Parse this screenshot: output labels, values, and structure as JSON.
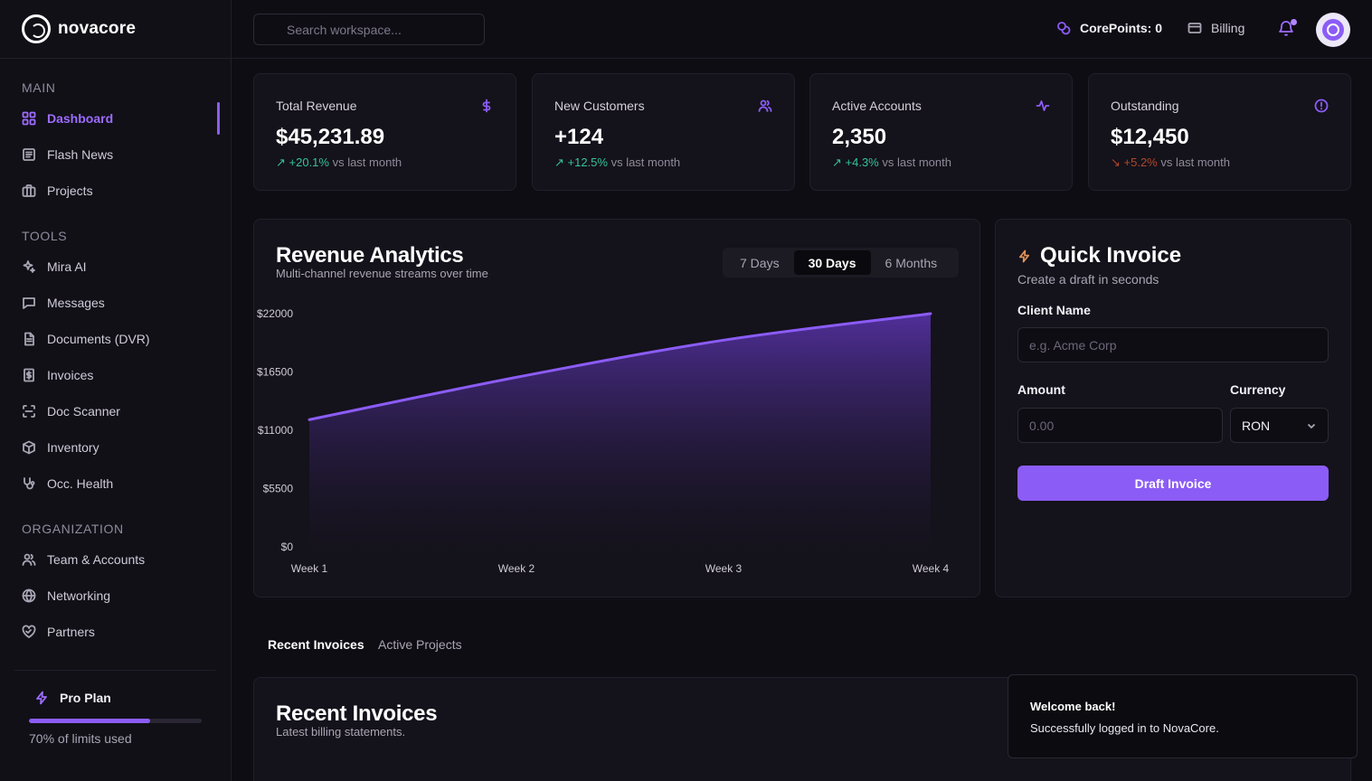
{
  "brand": {
    "name": "novacore"
  },
  "sidebar": {
    "sections": [
      {
        "label": "MAIN"
      },
      {
        "label": "TOOLS"
      },
      {
        "label": "ORGANIZATION"
      }
    ],
    "items": [
      {
        "label": "Dashboard",
        "icon": "grid-icon"
      },
      {
        "label": "Flash News",
        "icon": "newspaper-icon"
      },
      {
        "label": "Projects",
        "icon": "briefcase-icon"
      },
      {
        "label": "Mira AI",
        "icon": "sparkles-icon"
      },
      {
        "label": "Messages",
        "icon": "message-icon"
      },
      {
        "label": "Documents (DVR)",
        "icon": "document-icon"
      },
      {
        "label": "Invoices",
        "icon": "receipt-icon"
      },
      {
        "label": "Doc Scanner",
        "icon": "scan-icon"
      },
      {
        "label": "Inventory",
        "icon": "box-icon"
      },
      {
        "label": "Occ. Health",
        "icon": "stethoscope-icon"
      },
      {
        "label": "Team & Accounts",
        "icon": "users-icon"
      },
      {
        "label": "Networking",
        "icon": "globe-icon"
      },
      {
        "label": "Partners",
        "icon": "handshake-icon"
      }
    ],
    "plan": {
      "title": "Pro Plan",
      "usage_percent": 70,
      "usage_text": "70% of limits used"
    }
  },
  "topbar": {
    "search_placeholder": "Search workspace...",
    "corepoints": "CorePoints: 0",
    "billing": "Billing"
  },
  "stats": [
    {
      "label": "Total Revenue",
      "value": "$45,231.89",
      "change": "+20.1%",
      "suffix": " vs last month",
      "trend": "up",
      "icon": "dollar-icon"
    },
    {
      "label": "New Customers",
      "value": "+124",
      "change": "+12.5%",
      "suffix": " vs last month",
      "trend": "up",
      "icon": "users-icon"
    },
    {
      "label": "Active Accounts",
      "value": "2,350",
      "change": "+4.3%",
      "suffix": " vs last month",
      "trend": "up",
      "icon": "activity-icon"
    },
    {
      "label": "Outstanding",
      "value": "$12,450",
      "change": "+5.2%",
      "suffix": " vs last month",
      "trend": "down",
      "icon": "alert-circle-icon"
    }
  ],
  "analytics": {
    "title": "Revenue Analytics",
    "subtitle": "Multi-channel revenue streams over time",
    "ranges": [
      "7 Days",
      "30 Days",
      "6 Months"
    ],
    "selected_range": "30 Days"
  },
  "chart_data": {
    "type": "area",
    "categories": [
      "Week 1",
      "Week 2",
      "Week 3",
      "Week 4"
    ],
    "values": [
      12000,
      16000,
      19500,
      22000
    ],
    "y_ticks": [
      "$0",
      "$5500",
      "$11000",
      "$16500",
      "$22000"
    ],
    "ylim": [
      0,
      22000
    ],
    "title": "",
    "xlabel": "",
    "ylabel": "",
    "color": "#8b5cf6"
  },
  "quick_invoice": {
    "title": "Quick Invoice",
    "subtitle": "Create a draft in seconds",
    "client_label": "Client Name",
    "client_placeholder": "e.g. Acme Corp",
    "amount_label": "Amount",
    "amount_placeholder": "0.00",
    "currency_label": "Currency",
    "currency_value": "RON",
    "button": "Draft Invoice"
  },
  "tabs": [
    "Recent Invoices",
    "Active Projects"
  ],
  "recent_invoices": {
    "title": "Recent Invoices",
    "subtitle": "Latest billing statements."
  },
  "toast": {
    "title": "Welcome back!",
    "message": "Successfully logged in to NovaCore."
  },
  "colors": {
    "accent": "#8b5cf6",
    "positive": "#34c29c",
    "negative": "#b5472c",
    "background": "#0f0d14"
  }
}
